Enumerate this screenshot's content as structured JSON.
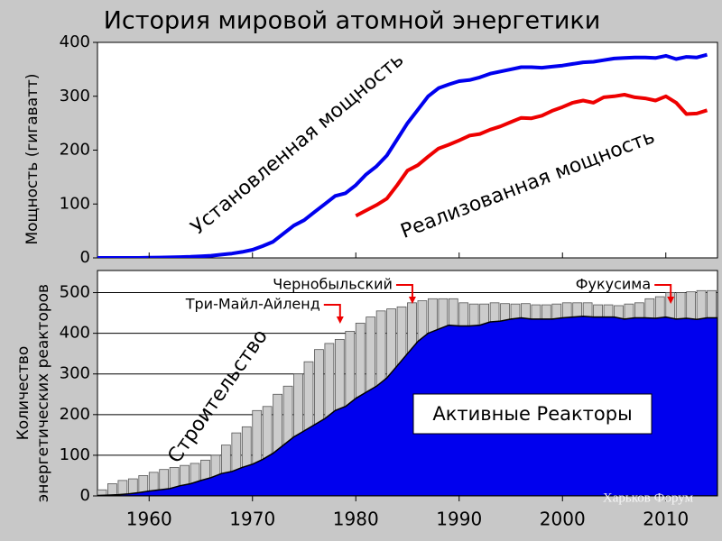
{
  "title": "История мировой атомной энергетики",
  "watermark": "Харьков Форум",
  "chart_data": [
    {
      "type": "line",
      "ylabel": "Мощность (гигаватт)",
      "x": [
        1955,
        1956,
        1957,
        1958,
        1959,
        1960,
        1961,
        1962,
        1963,
        1964,
        1965,
        1966,
        1967,
        1968,
        1969,
        1970,
        1971,
        1972,
        1973,
        1974,
        1975,
        1976,
        1977,
        1978,
        1979,
        1980,
        1981,
        1982,
        1983,
        1984,
        1985,
        1986,
        1987,
        1988,
        1989,
        1990,
        1991,
        1992,
        1993,
        1994,
        1995,
        1996,
        1997,
        1998,
        1999,
        2000,
        2001,
        2002,
        2003,
        2004,
        2005,
        2006,
        2007,
        2008,
        2009,
        2010,
        2011,
        2012,
        2013,
        2014
      ],
      "series": [
        {
          "name": "Установленная мощность",
          "color": "#0000ee",
          "values": [
            0,
            0,
            0,
            0,
            0,
            0.5,
            0.7,
            1,
            1.5,
            2,
            3,
            4,
            6,
            8,
            11,
            15,
            22,
            30,
            45,
            60,
            70,
            85,
            100,
            115,
            120,
            135,
            155,
            170,
            190,
            220,
            250,
            275,
            300,
            315,
            322,
            328,
            330,
            335,
            342,
            346,
            350,
            354,
            354,
            353,
            355,
            357,
            360,
            363,
            364,
            367,
            370,
            371,
            372,
            372,
            371,
            375,
            369,
            373,
            372,
            377
          ]
        },
        {
          "name": "Реализованная мощность",
          "color": "#ee0000",
          "values": [
            null,
            null,
            null,
            null,
            null,
            null,
            null,
            null,
            null,
            null,
            null,
            null,
            null,
            null,
            null,
            null,
            null,
            null,
            null,
            null,
            null,
            null,
            null,
            null,
            null,
            78,
            88,
            98,
            110,
            135,
            162,
            172,
            188,
            203,
            210,
            218,
            227,
            230,
            238,
            244,
            252,
            260,
            259,
            264,
            273,
            280,
            288,
            292,
            288,
            298,
            300,
            303,
            298,
            296,
            292,
            300,
            288,
            267,
            268,
            274
          ]
        }
      ],
      "xlim": [
        1955,
        2015
      ],
      "ylim": [
        0,
        400
      ],
      "yticks": [
        0,
        100,
        200,
        300,
        400
      ]
    },
    {
      "type": "stacked",
      "ylabel": [
        "Количество",
        "энергетических реакторов"
      ],
      "x": [
        1955,
        1956,
        1957,
        1958,
        1959,
        1960,
        1961,
        1962,
        1963,
        1964,
        1965,
        1966,
        1967,
        1968,
        1969,
        1970,
        1971,
        1972,
        1973,
        1974,
        1975,
        1976,
        1977,
        1978,
        1979,
        1980,
        1981,
        1982,
        1983,
        1984,
        1985,
        1986,
        1987,
        1988,
        1989,
        1990,
        1991,
        1992,
        1993,
        1994,
        1995,
        1996,
        1997,
        1998,
        1999,
        2000,
        2001,
        2002,
        2003,
        2004,
        2005,
        2006,
        2007,
        2008,
        2009,
        2010,
        2011,
        2012,
        2013,
        2014
      ],
      "series": [
        {
          "name": "Активные Реакторы",
          "color": "#0000ee",
          "values": [
            1,
            2,
            3,
            5,
            8,
            12,
            15,
            18,
            25,
            30,
            38,
            45,
            55,
            60,
            70,
            78,
            90,
            105,
            125,
            145,
            160,
            175,
            190,
            210,
            220,
            240,
            255,
            270,
            290,
            320,
            350,
            380,
            400,
            410,
            420,
            418,
            418,
            420,
            428,
            430,
            435,
            438,
            435,
            435,
            435,
            438,
            440,
            442,
            440,
            440,
            440,
            435,
            438,
            438,
            437,
            440,
            435,
            437,
            434,
            438
          ]
        },
        {
          "name": "Строительство",
          "color": "#cccccc",
          "values": [
            14,
            28,
            35,
            37,
            42,
            46,
            50,
            52,
            50,
            50,
            50,
            55,
            70,
            95,
            100,
            132,
            130,
            145,
            145,
            155,
            170,
            185,
            185,
            175,
            185,
            185,
            185,
            185,
            170,
            145,
            125,
            100,
            85,
            75,
            65,
            57,
            54,
            52,
            47,
            43,
            37,
            35,
            35,
            35,
            37,
            37,
            35,
            33,
            30,
            30,
            28,
            37,
            37,
            47,
            53,
            60,
            65,
            65,
            71,
            67
          ]
        }
      ],
      "events": [
        {
          "label": "Три-Майл-Айленд",
          "x": 1979
        },
        {
          "label": "Чернобыльский",
          "x": 1986
        },
        {
          "label": "Фукусима",
          "x": 2011
        }
      ],
      "xlim": [
        1955,
        2015
      ],
      "ylim": [
        0,
        550
      ],
      "yticks": [
        0,
        100,
        200,
        300,
        400,
        500
      ],
      "xticks": [
        1960,
        1970,
        1980,
        1990,
        2000,
        2010
      ],
      "grid": true
    }
  ]
}
